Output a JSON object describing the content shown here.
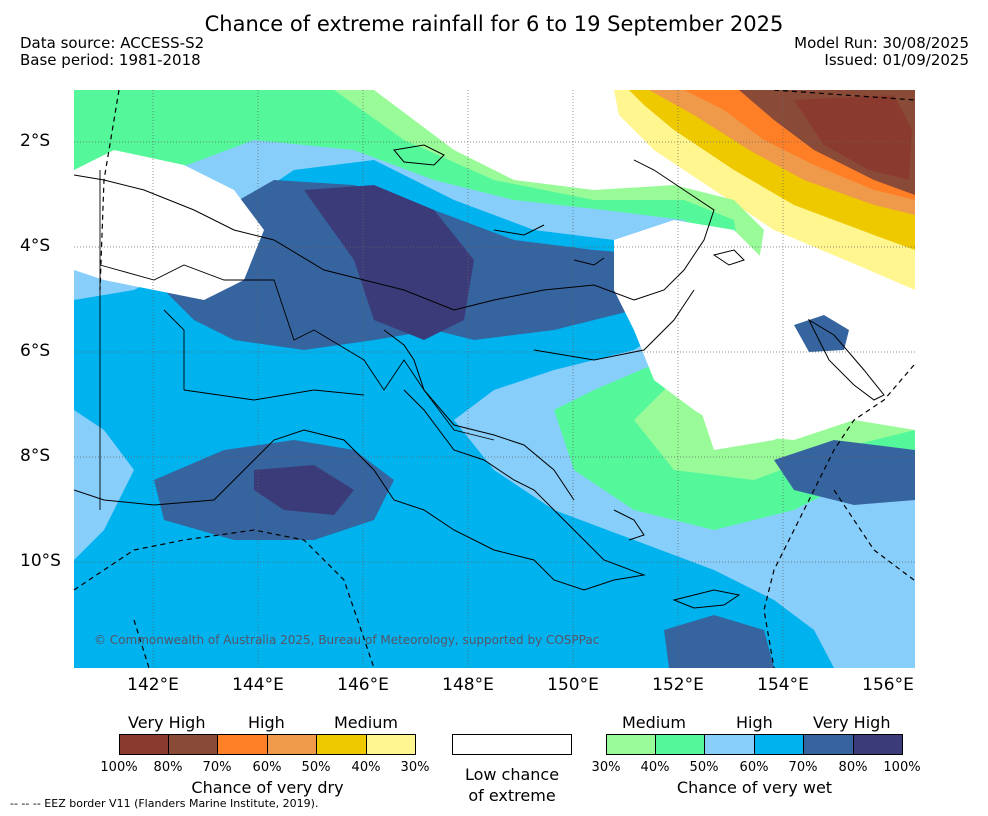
{
  "title": "Chance of extreme rainfall for 6 to 19 September 2025",
  "meta": {
    "data_source": "Data source: ACCESS-S2",
    "base_period": "Base period: 1981-2018",
    "model_run": "Model Run: 30/08/2025",
    "issued": "Issued: 01/09/2025"
  },
  "axes": {
    "lat_ticks": [
      "2°S",
      "4°S",
      "6°S",
      "8°S",
      "10°S"
    ],
    "lon_ticks": [
      "142°E",
      "144°E",
      "146°E",
      "148°E",
      "150°E",
      "152°E",
      "154°E",
      "156°E"
    ]
  },
  "copyright": "© Commonwealth of Australia 2025, Bureau of Meteorology, supported by COSPPac",
  "legend": {
    "dry": {
      "levels": [
        "Very High",
        "High",
        "Medium"
      ],
      "colors": [
        "#8b3a2f",
        "#8a4a38",
        "#ff7f27",
        "#ee9a4a",
        "#eec900",
        "#fff68f"
      ],
      "percents": [
        "100%",
        "80%",
        "70%",
        "60%",
        "50%",
        "40%",
        "30%"
      ],
      "caption": "Chance of very dry"
    },
    "low": {
      "caption_line1": "Low chance",
      "caption_line2": "of extreme"
    },
    "wet": {
      "levels": [
        "Medium",
        "High",
        "Very High"
      ],
      "colors": [
        "#98fb98",
        "#54f89b",
        "#87cefa",
        "#00b2ee",
        "#36649f",
        "#3b3b7a"
      ],
      "percents": [
        "30%",
        "40%",
        "50%",
        "60%",
        "70%",
        "80%",
        "100%"
      ],
      "caption": "Chance of very wet"
    }
  },
  "eez_note": "--  --  -- EEZ border V11 (Flanders Marine Institute, 2019)."
}
